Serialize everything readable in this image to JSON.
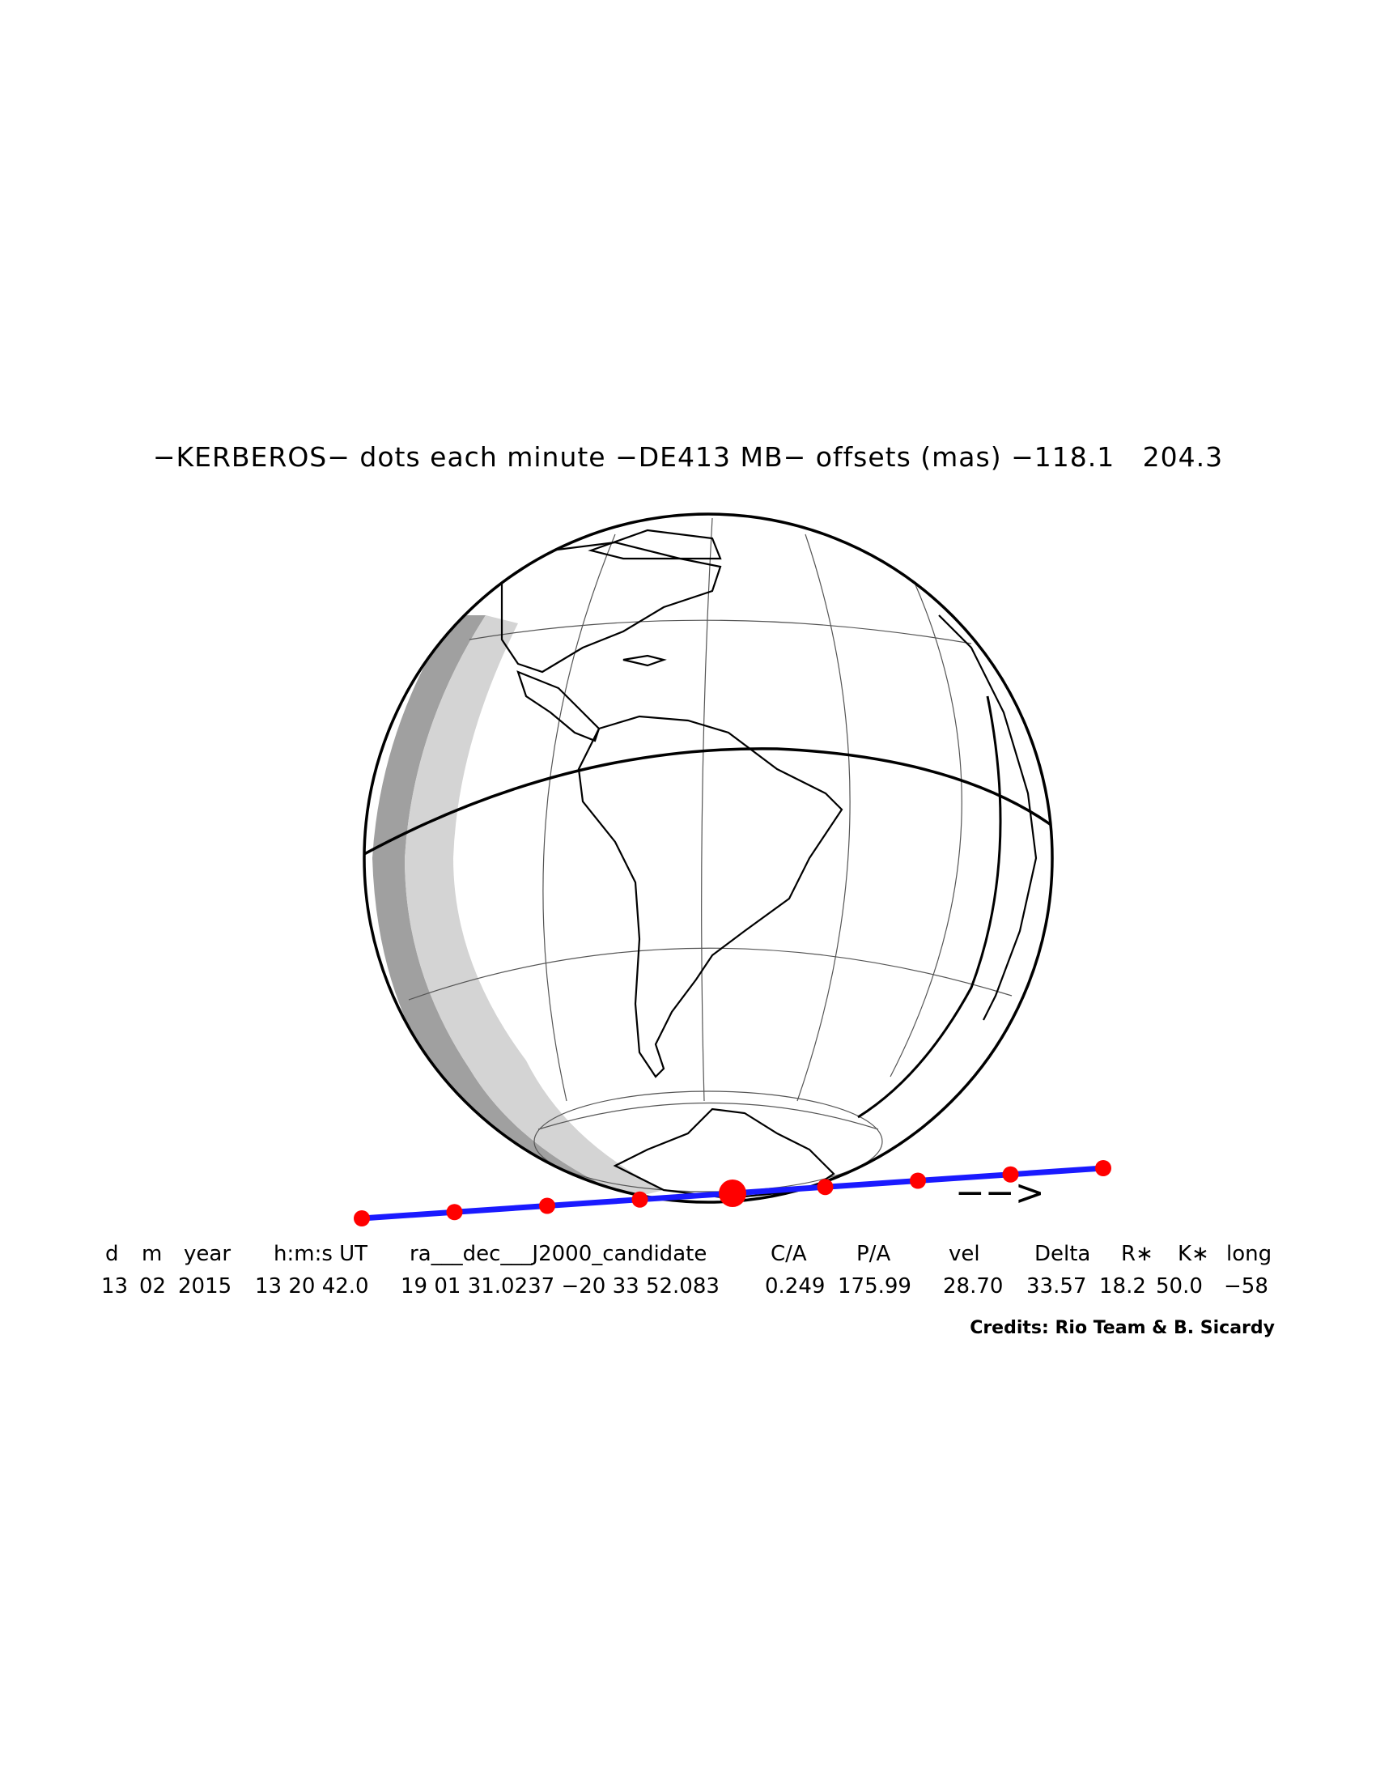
{
  "title": "−KERBEROS− dots each minute −DE413 MB− offsets (mas) −118.1   204.3",
  "arrow_label": "−−>",
  "table": {
    "headers": [
      "d",
      "m",
      "year",
      "h:m:s UT",
      "ra___dec___J2000_candidate",
      "C/A",
      "P/A",
      "vel",
      "Delta",
      "R∗",
      "K∗",
      "long"
    ],
    "values": [
      "13",
      "02",
      "2015",
      "13 20 42.0",
      "19 01 31.0237 −20 33 52.083",
      "0.249",
      "175.99",
      "28.70",
      "33.57",
      "18.2",
      "50.0",
      "−58"
    ]
  },
  "credits": "Credits: Rio Team & B. Sicardy",
  "colors": {
    "track_line": "#1a1aff",
    "track_dots": "#ff0000",
    "shadow_light": "#d4d4d4",
    "shadow_dark": "#a0a0a0"
  },
  "track": {
    "dot_count": 9,
    "closest_approach_index": 4
  }
}
